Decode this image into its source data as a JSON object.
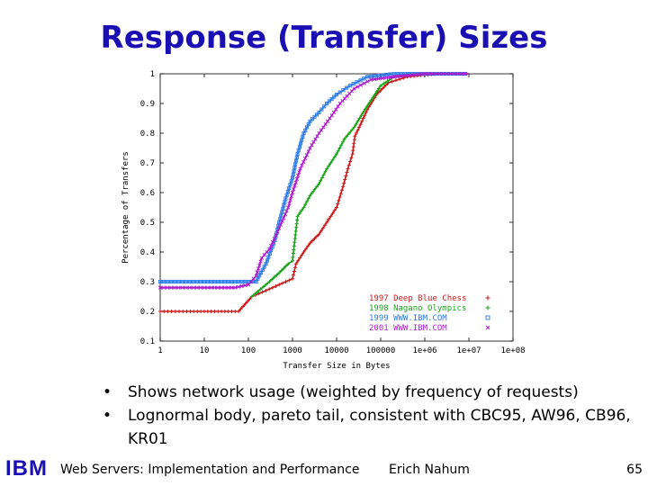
{
  "slide": {
    "title": "Response (Transfer) Sizes",
    "bullets": [
      "Shows network usage (weighted by frequency of requests)",
      "Lognormal body, pareto tail, consistent with CBC95, AW96, CB96, KR01"
    ],
    "bullet_glyph": "•"
  },
  "footer": {
    "logo": "IBM",
    "title": "Web Servers: Implementation and Performance",
    "author": "Erich Nahum",
    "page": "65"
  },
  "chart_data": {
    "type": "line",
    "xlabel": "Transfer Size in Bytes",
    "ylabel": "Percentage of Transfers",
    "xscale": "log",
    "xlim": [
      1,
      100000000
    ],
    "ylim": [
      0.1,
      1.0
    ],
    "x_ticks": [
      "1",
      "10",
      "100",
      "1000",
      "10000",
      "100000",
      "1e+06",
      "1e+07",
      "1e+08"
    ],
    "y_ticks": [
      "0.1",
      "0.2",
      "0.3",
      "0.4",
      "0.5",
      "0.6",
      "0.7",
      "0.8",
      "0.9",
      "1"
    ],
    "grid": false,
    "legend_position": "bottom-right",
    "series": [
      {
        "name": "1997 Deep Blue Chess",
        "color": "#cc1a1a",
        "marker": "+",
        "points": [
          [
            1,
            0.2
          ],
          [
            4,
            0.2
          ],
          [
            10,
            0.2
          ],
          [
            60,
            0.2
          ],
          [
            120,
            0.25
          ],
          [
            250,
            0.27
          ],
          [
            500,
            0.29
          ],
          [
            1000,
            0.31
          ],
          [
            1200,
            0.36
          ],
          [
            1800,
            0.4
          ],
          [
            2500,
            0.43
          ],
          [
            4000,
            0.46
          ],
          [
            6000,
            0.5
          ],
          [
            10000,
            0.55
          ],
          [
            14000,
            0.62
          ],
          [
            18000,
            0.68
          ],
          [
            23000,
            0.73
          ],
          [
            26000,
            0.79
          ],
          [
            35000,
            0.83
          ],
          [
            50000,
            0.88
          ],
          [
            80000,
            0.93
          ],
          [
            150000,
            0.97
          ],
          [
            400000,
            0.99
          ],
          [
            2000000,
            1.0
          ],
          [
            10000000,
            1.0
          ]
        ]
      },
      {
        "name": "1998 Nagano Olympics",
        "color": "#1aa31a",
        "marker": "+",
        "points": [
          [
            120,
            0.25
          ],
          [
            300,
            0.3
          ],
          [
            500,
            0.33
          ],
          [
            800,
            0.36
          ],
          [
            1000,
            0.37
          ],
          [
            1300,
            0.52
          ],
          [
            1800,
            0.55
          ],
          [
            2500,
            0.59
          ],
          [
            4000,
            0.63
          ],
          [
            6000,
            0.68
          ],
          [
            10000,
            0.73
          ],
          [
            15000,
            0.78
          ],
          [
            25000,
            0.82
          ],
          [
            40000,
            0.87
          ],
          [
            60000,
            0.91
          ],
          [
            100000,
            0.96
          ],
          [
            200000,
            0.99
          ],
          [
            500000,
            1.0
          ],
          [
            5000000,
            1.0
          ]
        ]
      },
      {
        "name": "1999 WWW.IBM.COM",
        "color": "#2a7ae8",
        "marker": "□",
        "points": [
          [
            1,
            0.3
          ],
          [
            10,
            0.3
          ],
          [
            50,
            0.3
          ],
          [
            100,
            0.3
          ],
          [
            150,
            0.3
          ],
          [
            250,
            0.36
          ],
          [
            400,
            0.44
          ],
          [
            500,
            0.5
          ],
          [
            700,
            0.58
          ],
          [
            1000,
            0.65
          ],
          [
            1300,
            0.73
          ],
          [
            1800,
            0.8
          ],
          [
            2500,
            0.84
          ],
          [
            4000,
            0.87
          ],
          [
            6000,
            0.9
          ],
          [
            10000,
            0.93
          ],
          [
            20000,
            0.96
          ],
          [
            50000,
            0.99
          ],
          [
            200000,
            1.0
          ],
          [
            10000000,
            1.0
          ]
        ]
      },
      {
        "name": "2001 WWW.IBM.COM",
        "color": "#b01ad0",
        "marker": "×",
        "points": [
          [
            1,
            0.28
          ],
          [
            10,
            0.28
          ],
          [
            50,
            0.28
          ],
          [
            100,
            0.29
          ],
          [
            150,
            0.32
          ],
          [
            200,
            0.38
          ],
          [
            300,
            0.41
          ],
          [
            500,
            0.48
          ],
          [
            800,
            0.55
          ],
          [
            1000,
            0.6
          ],
          [
            1500,
            0.68
          ],
          [
            2500,
            0.75
          ],
          [
            4000,
            0.8
          ],
          [
            7000,
            0.85
          ],
          [
            12000,
            0.9
          ],
          [
            25000,
            0.95
          ],
          [
            60000,
            0.98
          ],
          [
            200000,
            0.99
          ],
          [
            1000000,
            1.0
          ],
          [
            10000000,
            1.0
          ]
        ]
      }
    ]
  }
}
